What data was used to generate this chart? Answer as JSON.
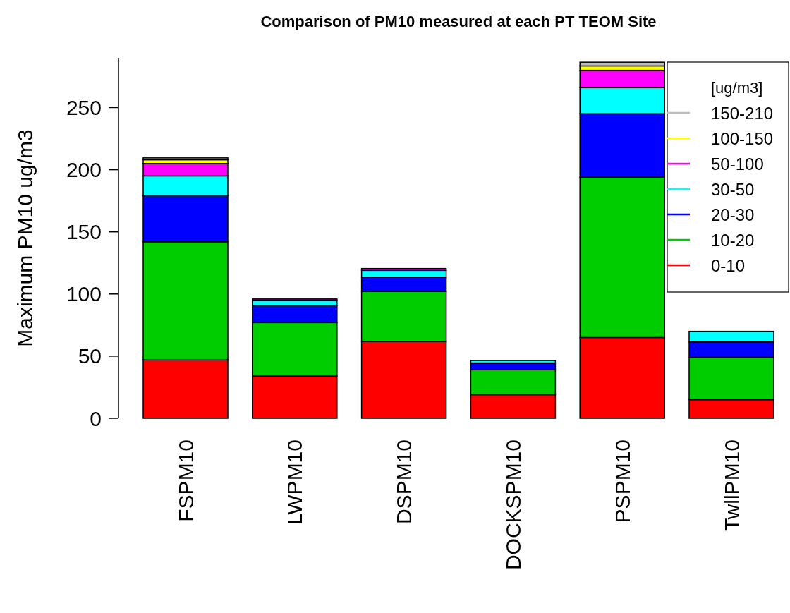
{
  "chart_data": {
    "type": "bar",
    "title": "Comparison of PM10 measured at each PT TEOM Site",
    "ylabel": "Maximum PM10 ug/m3",
    "legend_title": "[ug/m3]",
    "categories": [
      "FSPM10",
      "LWPM10",
      "DSPM10",
      "DOCKSPM10",
      "PSPM10",
      "TwllPM10"
    ],
    "stacked": true,
    "ylim": [
      0,
      290
    ],
    "yticks": [
      0,
      50,
      100,
      150,
      200,
      250
    ],
    "grid": false,
    "legend": "top right",
    "series": [
      {
        "name": "0-10",
        "color": "#ff0000",
        "values": [
          47,
          34,
          62,
          19,
          65,
          15
        ]
      },
      {
        "name": "10-20",
        "color": "#00cd00",
        "values": [
          95,
          43,
          40,
          20,
          129,
          34
        ]
      },
      {
        "name": "20-30",
        "color": "#0000ff",
        "values": [
          37,
          13.5,
          11.5,
          5.5,
          51,
          12.5
        ]
      },
      {
        "name": "30-50",
        "color": "#00ffff",
        "values": [
          16,
          4.5,
          5.5,
          2,
          21,
          8.5
        ]
      },
      {
        "name": "50-100",
        "color": "#ff00ff",
        "values": [
          10,
          1,
          1.5,
          0,
          14,
          0
        ]
      },
      {
        "name": "100-150",
        "color": "#ffff00",
        "values": [
          3,
          0,
          0,
          0,
          3.5,
          0
        ]
      },
      {
        "name": "150-210",
        "color": "#bebebe",
        "values": [
          1.5,
          0,
          0,
          0,
          3,
          0
        ]
      }
    ]
  }
}
